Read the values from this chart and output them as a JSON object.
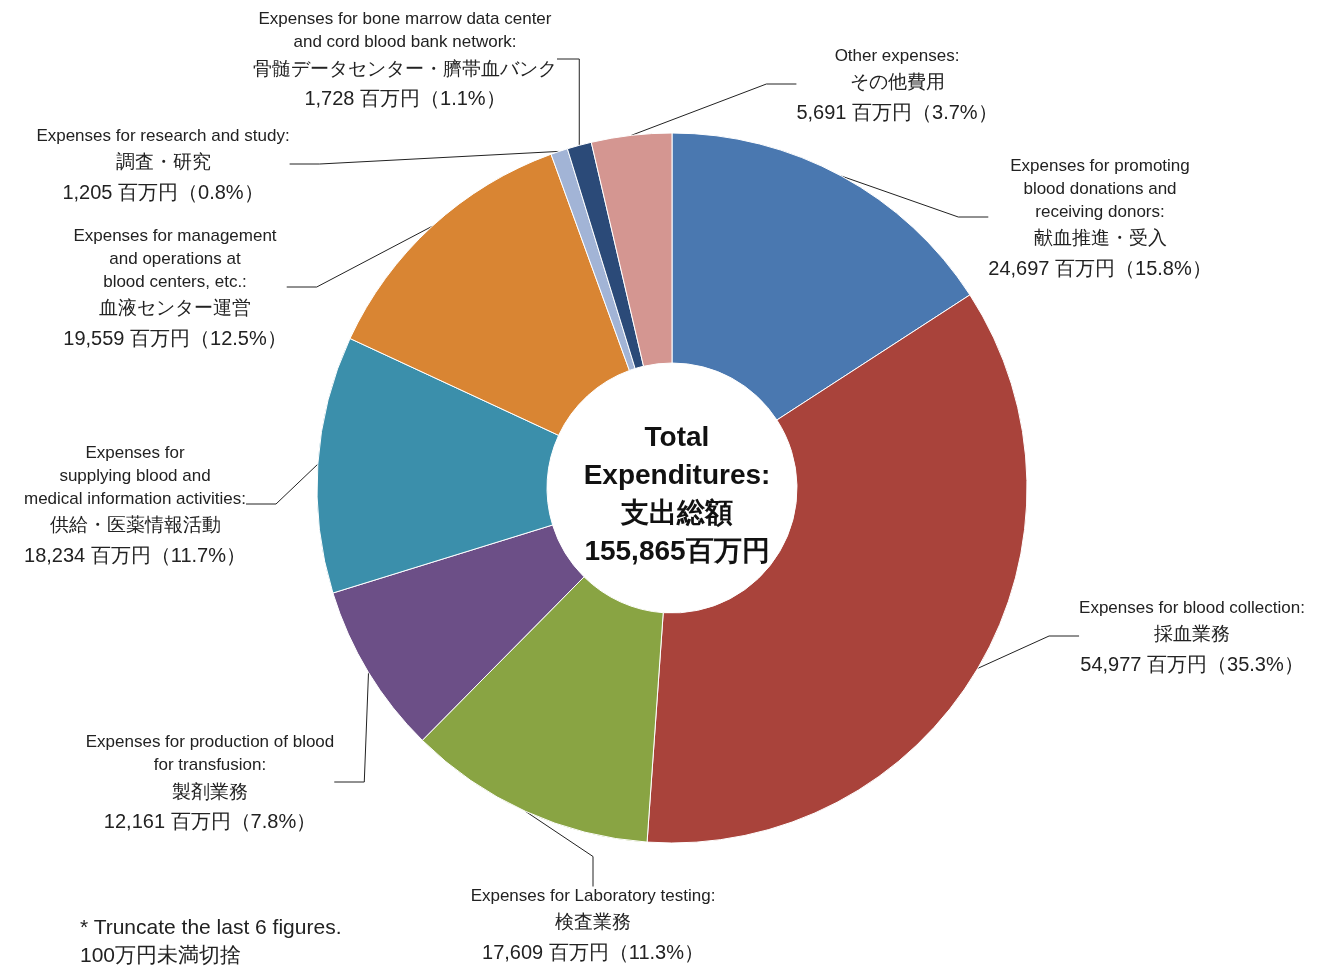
{
  "chart_data": {
    "type": "donut",
    "title": "Total\nExpenditures:\n支出総額\n155,865百万円",
    "categories": [
      "Expenses for promoting\nblood donations and\nreceiving donors:\n献血推進・受入",
      "Expenses for blood collection:\n採血業務",
      "Expenses for Laboratory testing:\n検査業務",
      "Expenses for production of blood\nfor transfusion:\n製剤業務",
      "Expenses for\nsupplying blood and\nmedical information activities:\n供給・医薬情報活動",
      "Expenses for management\nand operations at\nblood centers, etc.:\n血液センター運営",
      "Expenses for research and study:\n調査・研究",
      "Expenses for bone marrow data center\nand cord blood bank network:\n骨髄データセンター・臍帯血バンク",
      "Other expenses:\nその他費用"
    ],
    "values": [
      24697,
      54977,
      17609,
      12161,
      18234,
      19559,
      1205,
      1728,
      5691
    ],
    "value_labels": [
      "24,697 百万円（15.8%）",
      "54,977 百万円（35.3%）",
      "17,609 百万円（11.3%）",
      "12,161 百万円（7.8%）",
      "18,234 百万円（11.7%）",
      "19,559 百万円（12.5%）",
      "1,205 百万円（0.8%）",
      "1,728 百万円（1.1%）",
      "5,691 百万円（3.7%）"
    ],
    "colors": [
      "#4a78b0",
      "#a9433b",
      "#89a443",
      "#6c4f87",
      "#3b8fab",
      "#d98533",
      "#a2b4d6",
      "#2b4a78",
      "#d49691"
    ],
    "annotations": [
      "* Truncate the last 6 figures.\n100万円未満切捨"
    ],
    "legend": false
  }
}
